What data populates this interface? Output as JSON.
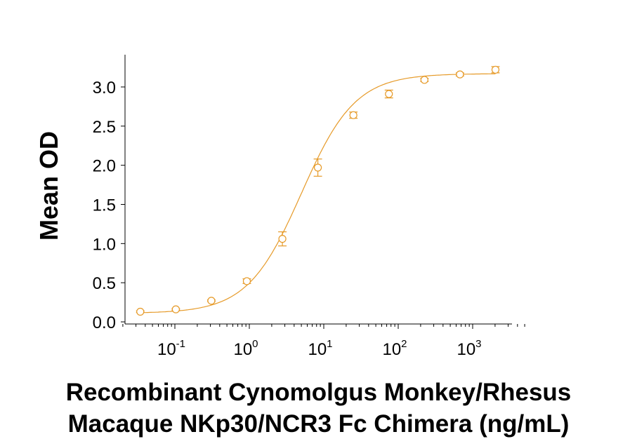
{
  "chart_data": {
    "type": "scatter",
    "xscale": "log",
    "xlim": [
      0.02,
      5000
    ],
    "ylim": [
      0,
      3.3
    ],
    "xlabel_lines": [
      "Recombinant Cynomolgus Monkey/Rhesus",
      "Macaque NKp30/NCR3 Fc Chimera (ng/mL)"
    ],
    "ylabel": "Mean OD",
    "y_ticks": [
      {
        "value": 0.0,
        "label": "0.0"
      },
      {
        "value": 0.5,
        "label": "0.5"
      },
      {
        "value": 1.0,
        "label": "1.0"
      },
      {
        "value": 1.5,
        "label": "1.5"
      },
      {
        "value": 2.0,
        "label": "2.0"
      },
      {
        "value": 2.5,
        "label": "2.5"
      },
      {
        "value": 3.0,
        "label": "3.0"
      }
    ],
    "x_ticks": [
      {
        "value": 0.1,
        "base": "10",
        "exp": "-1"
      },
      {
        "value": 1,
        "base": "10",
        "exp": "0"
      },
      {
        "value": 10,
        "base": "10",
        "exp": "1"
      },
      {
        "value": 100,
        "base": "10",
        "exp": "2"
      },
      {
        "value": 1000,
        "base": "10",
        "exp": "3"
      }
    ],
    "color": "#E69A28",
    "series": [
      {
        "points": [
          {
            "x": 0.0343,
            "y": 0.13,
            "err": 0.01
          },
          {
            "x": 0.103,
            "y": 0.16,
            "err": 0.01
          },
          {
            "x": 0.309,
            "y": 0.27,
            "err": 0.01
          },
          {
            "x": 0.926,
            "y": 0.52,
            "err": 0.03
          },
          {
            "x": 2.78,
            "y": 1.06,
            "err": 0.09
          },
          {
            "x": 8.33,
            "y": 1.97,
            "err": 0.11
          },
          {
            "x": 25.0,
            "y": 2.64,
            "err": 0.04
          },
          {
            "x": 75.0,
            "y": 2.91,
            "err": 0.05
          },
          {
            "x": 225,
            "y": 3.09,
            "err": 0.02
          },
          {
            "x": 675,
            "y": 3.16,
            "err": 0.02
          },
          {
            "x": 2025,
            "y": 3.22,
            "err": 0.04
          }
        ]
      }
    ]
  }
}
